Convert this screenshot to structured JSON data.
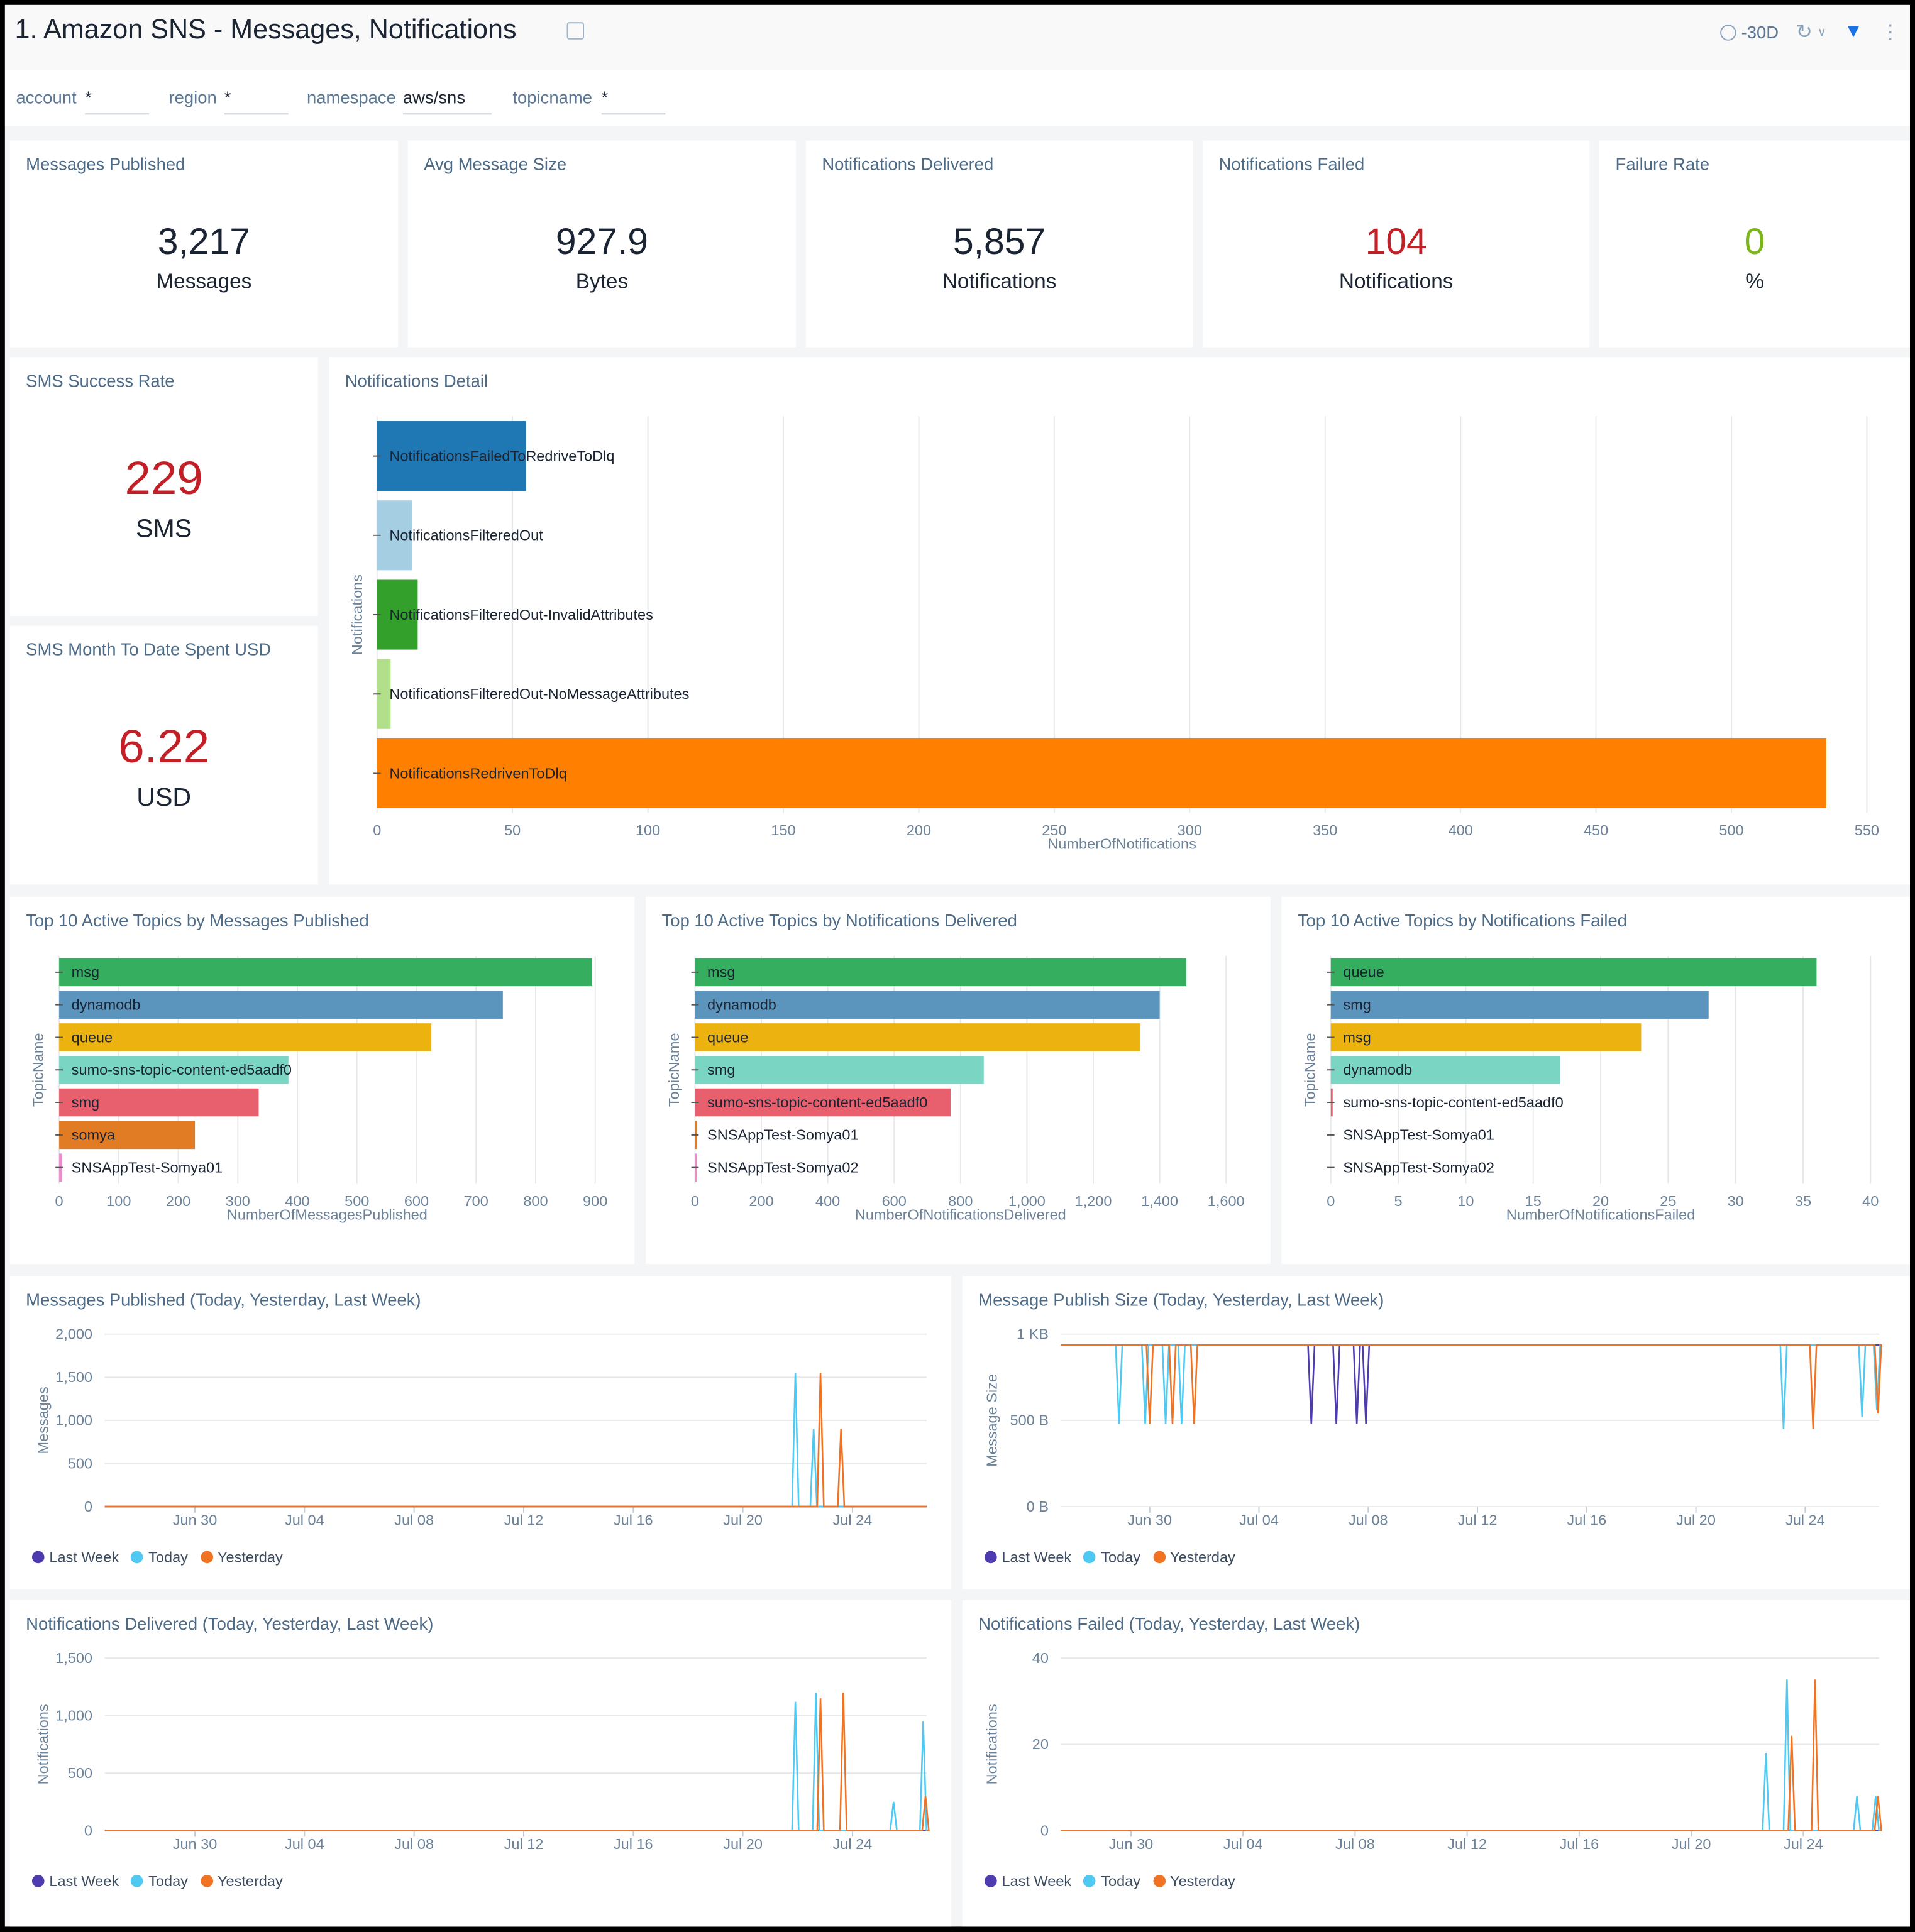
{
  "header": {
    "title": "1. Amazon SNS - Messages, Notifications",
    "time_range": "-30D",
    "icons": [
      "share-icon",
      "clock-icon",
      "refresh-icon",
      "chevron-down-icon",
      "filter-icon",
      "more-icon"
    ]
  },
  "filters": [
    {
      "label": "account",
      "value": "*"
    },
    {
      "label": "region",
      "value": "*"
    },
    {
      "label": "namespace",
      "value": "aws/sns"
    },
    {
      "label": "topicname",
      "value": "*"
    }
  ],
  "stats": [
    {
      "title": "Messages Published",
      "value": "3,217",
      "unit": "Messages",
      "color": "#1b2433"
    },
    {
      "title": "Avg Message Size",
      "value": "927.9",
      "unit": "Bytes",
      "color": "#1b2433"
    },
    {
      "title": "Notifications Delivered",
      "value": "5,857",
      "unit": "Notifications",
      "color": "#1b2433"
    },
    {
      "title": "Notifications Failed",
      "value": "104",
      "unit": "Notifications",
      "color": "#c22026"
    },
    {
      "title": "Failure Rate",
      "value": "0",
      "unit": "%",
      "color": "#7cb518"
    },
    {
      "title": "SMS Success Rate",
      "value": "229",
      "unit": "SMS",
      "color": "#c22026"
    },
    {
      "title": "SMS Month To Date Spent USD",
      "value": "6.22",
      "unit": "USD",
      "color": "#c22026"
    }
  ],
  "chart_data": [
    {
      "id": "detail",
      "type": "bar",
      "orientation": "horizontal",
      "title": "Notifications Detail",
      "xlabel": "NumberOfNotifications",
      "ylabel": "Notifications",
      "xlim": [
        0,
        550
      ],
      "xticks": [
        "0",
        "50",
        "100",
        "150",
        "200",
        "250",
        "300",
        "350",
        "400",
        "450",
        "500",
        "550"
      ],
      "categories": [
        "NotificationsFailedToRedriveToDlq",
        "NotificationsFilteredOut",
        "NotificationsFilteredOut-InvalidAttributes",
        "NotificationsFilteredOut-NoMessageAttributes",
        "NotificationsRedrivenToDlq"
      ],
      "values": [
        55,
        13,
        15,
        5,
        535
      ],
      "colors": [
        "#1f78b4",
        "#a6cee3",
        "#33a02c",
        "#b2df8a",
        "#ff7f00"
      ],
      "grid": true
    },
    {
      "id": "top_pub",
      "type": "bar",
      "orientation": "horizontal",
      "title": "Top 10 Active Topics by Messages Published",
      "xlabel": "NumberOfMessagesPublished",
      "ylabel": "TopicName",
      "xlim": [
        0,
        900
      ],
      "xticks": [
        "0",
        "100",
        "200",
        "300",
        "400",
        "500",
        "600",
        "700",
        "800",
        "900"
      ],
      "categories": [
        "msg",
        "dynamodb",
        "queue",
        "sumo-sns-topic-content-ed5aadf0",
        "smg",
        "somya",
        "SNSAppTest-Somya01"
      ],
      "values": [
        895,
        745,
        625,
        385,
        335,
        228,
        5
      ],
      "colors": [
        "#36ae5f",
        "#5b94bd",
        "#ebb210",
        "#7ad6c2",
        "#e8606e",
        "#e17b24",
        "#e98ec9"
      ],
      "grid": true
    },
    {
      "id": "top_del",
      "type": "bar",
      "orientation": "horizontal",
      "title": "Top 10 Active Topics by Notifications Delivered",
      "xlabel": "NumberOfNotificationsDelivered",
      "ylabel": "TopicName",
      "xlim": [
        0,
        1600
      ],
      "xticks": [
        "0",
        "200",
        "400",
        "600",
        "800",
        "1,000",
        "1,200",
        "1,400",
        "1,600"
      ],
      "categories": [
        "msg",
        "dynamodb",
        "queue",
        "smg",
        "sumo-sns-topic-content-ed5aadf0",
        "SNSAppTest-Somya01",
        "SNSAppTest-Somya02"
      ],
      "values": [
        1480,
        1400,
        1340,
        870,
        770,
        5,
        2
      ],
      "colors": [
        "#36ae5f",
        "#5b94bd",
        "#ebb210",
        "#7ad6c2",
        "#e8606e",
        "#e17b24",
        "#e98ec9"
      ],
      "grid": true
    },
    {
      "id": "top_fail",
      "type": "bar",
      "orientation": "horizontal",
      "title": "Top 10 Active Topics by Notifications Failed",
      "xlabel": "NumberOfNotificationsFailed",
      "ylabel": "TopicName",
      "xlim": [
        0,
        40
      ],
      "xticks": [
        "0",
        "5",
        "10",
        "15",
        "20",
        "25",
        "30",
        "35",
        "40"
      ],
      "categories": [
        "queue",
        "smg",
        "msg",
        "dynamodb",
        "sumo-sns-topic-content-ed5aadf0",
        "SNSAppTest-Somya01",
        "SNSAppTest-Somya02"
      ],
      "values": [
        36,
        28,
        23,
        17,
        0.1,
        0,
        0
      ],
      "colors": [
        "#36ae5f",
        "#5b94bd",
        "#ebb210",
        "#7ad6c2",
        "#e8606e",
        "#e17b24",
        "#e98ec9"
      ],
      "grid": true
    },
    {
      "id": "line_pub",
      "type": "line",
      "title": "Messages Published (Today, Yesterday, Last Week)",
      "ylabel": "Messages",
      "ylim": [
        0,
        2000
      ],
      "yticks": [
        0,
        500,
        1000,
        1500,
        2000
      ],
      "yticklabels": [
        "0",
        "500",
        "1,000",
        "1,500",
        "2,000"
      ],
      "xlim": [
        "Jun 26 17:00",
        "Jul 26 17:00"
      ],
      "xticks": [
        "Jun 30",
        "Jul 04",
        "Jul 08",
        "Jul 12",
        "Jul 16",
        "Jul 20",
        "Jul 24"
      ],
      "legend": "bottom-left",
      "series": [
        {
          "name": "Last Week",
          "color": "#4e3bb0",
          "baseline": 0,
          "spikes": []
        },
        {
          "name": "Today",
          "color": "#4fc9f2",
          "baseline": 0,
          "spikes": [
            [
              "Jul 21 22:00",
              1550
            ],
            [
              "Jul 22 14:00",
              900
            ]
          ]
        },
        {
          "name": "Yesterday",
          "color": "#ef7323",
          "baseline": 0,
          "spikes": [
            [
              "Jul 22 20:00",
              1550
            ],
            [
              "Jul 23 14:00",
              900
            ]
          ]
        }
      ]
    },
    {
      "id": "line_size",
      "type": "line",
      "title": "Message Publish Size (Today, Yesterday, Last Week)",
      "ylabel": "Message Size",
      "ylim": [
        0,
        1000
      ],
      "yticks": [
        0,
        500,
        1000
      ],
      "yticklabels": [
        "0 B",
        "500 B",
        "1 KB"
      ],
      "xlim": [
        "Jun 26 18:00",
        "Jul 26 17:00"
      ],
      "xticks": [
        "Jun 30",
        "Jul 04",
        "Jul 08",
        "Jul 12",
        "Jul 16",
        "Jul 20",
        "Jul 24"
      ],
      "legend": "bottom-left",
      "series": [
        {
          "name": "Last Week",
          "color": "#4e3bb0",
          "baseline": 936,
          "spikes": [
            [
              "Jul 05 22:00",
              480
            ],
            [
              "Jul 06 20:00",
              480
            ],
            [
              "Jul 07 14:00",
              480
            ],
            [
              "Jul 07 22:00",
              480
            ]
          ]
        },
        {
          "name": "Today",
          "color": "#4fc9f2",
          "baseline": 936,
          "spikes": [
            [
              "Jun 28 21:00",
              480
            ],
            [
              "Jun 29 20:00",
              480
            ],
            [
              "Jun 30 14:00",
              480
            ],
            [
              "Jul 01 04:00",
              480
            ],
            [
              "Jul 23 05:00",
              450
            ],
            [
              "Jul 26 02:00",
              520
            ],
            [
              "Jul 26 15:00",
              560
            ]
          ]
        },
        {
          "name": "Yesterday",
          "color": "#ef7323",
          "baseline": 936,
          "spikes": [
            [
              "Jun 30 00:00",
              480
            ],
            [
              "Jun 30 20:00",
              480
            ],
            [
              "Jul 01 15:00",
              480
            ],
            [
              "Jul 24 07:00",
              450
            ],
            [
              "Jul 26 16:00",
              540
            ]
          ]
        }
      ]
    },
    {
      "id": "line_del",
      "type": "line",
      "title": "Notifications Delivered (Today, Yesterday, Last Week)",
      "ylabel": "Notifications",
      "ylim": [
        0,
        1500
      ],
      "yticks": [
        0,
        500,
        1000,
        1500
      ],
      "yticklabels": [
        "0",
        "500",
        "1,000",
        "1,500"
      ],
      "xlim": [
        "Jun 26 17:00",
        "Jul 26 17:00"
      ],
      "xticks": [
        "Jun 30",
        "Jul 04",
        "Jul 08",
        "Jul 12",
        "Jul 16",
        "Jul 20",
        "Jul 24"
      ],
      "legend": "bottom-left",
      "series": [
        {
          "name": "Last Week",
          "color": "#4e3bb0",
          "baseline": 0,
          "spikes": []
        },
        {
          "name": "Today",
          "color": "#4fc9f2",
          "baseline": 0,
          "spikes": [
            [
              "Jul 21 22:00",
              1120
            ],
            [
              "Jul 22 16:00",
              1200
            ],
            [
              "Jul 25 12:00",
              250
            ],
            [
              "Jul 26 14:00",
              950
            ]
          ]
        },
        {
          "name": "Yesterday",
          "color": "#ef7323",
          "baseline": 0,
          "spikes": [
            [
              "Jul 22 20:00",
              1150
            ],
            [
              "Jul 23 16:00",
              1200
            ],
            [
              "Jul 26 16:00",
              300
            ]
          ]
        }
      ]
    },
    {
      "id": "line_fail",
      "type": "line",
      "title": "Notifications Failed (Today, Yesterday, Last Week)",
      "ylabel": "Notifications",
      "ylim": [
        0,
        40
      ],
      "yticks": [
        0,
        20,
        40
      ],
      "yticklabels": [
        "0",
        "20",
        "40"
      ],
      "xlim": [
        "Jun 27 12:00",
        "Jul 26 17:00"
      ],
      "xticks": [
        "Jun 30",
        "Jul 04",
        "Jul 08",
        "Jul 12",
        "Jul 16",
        "Jul 20",
        "Jul 24"
      ],
      "legend": "bottom-left",
      "series": [
        {
          "name": "Last Week",
          "color": "#4e3bb0",
          "baseline": 0,
          "spikes": []
        },
        {
          "name": "Today",
          "color": "#4fc9f2",
          "baseline": 0,
          "spikes": [
            [
              "Jul 22 16:00",
              18
            ],
            [
              "Jul 23 10:00",
              35
            ],
            [
              "Jul 25 22:00",
              8
            ],
            [
              "Jul 26 14:00",
              8
            ]
          ]
        },
        {
          "name": "Yesterday",
          "color": "#ef7323",
          "baseline": 0,
          "spikes": [
            [
              "Jul 23 14:00",
              22
            ],
            [
              "Jul 24 10:00",
              35
            ],
            [
              "Jul 26 16:00",
              8
            ]
          ]
        }
      ]
    }
  ]
}
